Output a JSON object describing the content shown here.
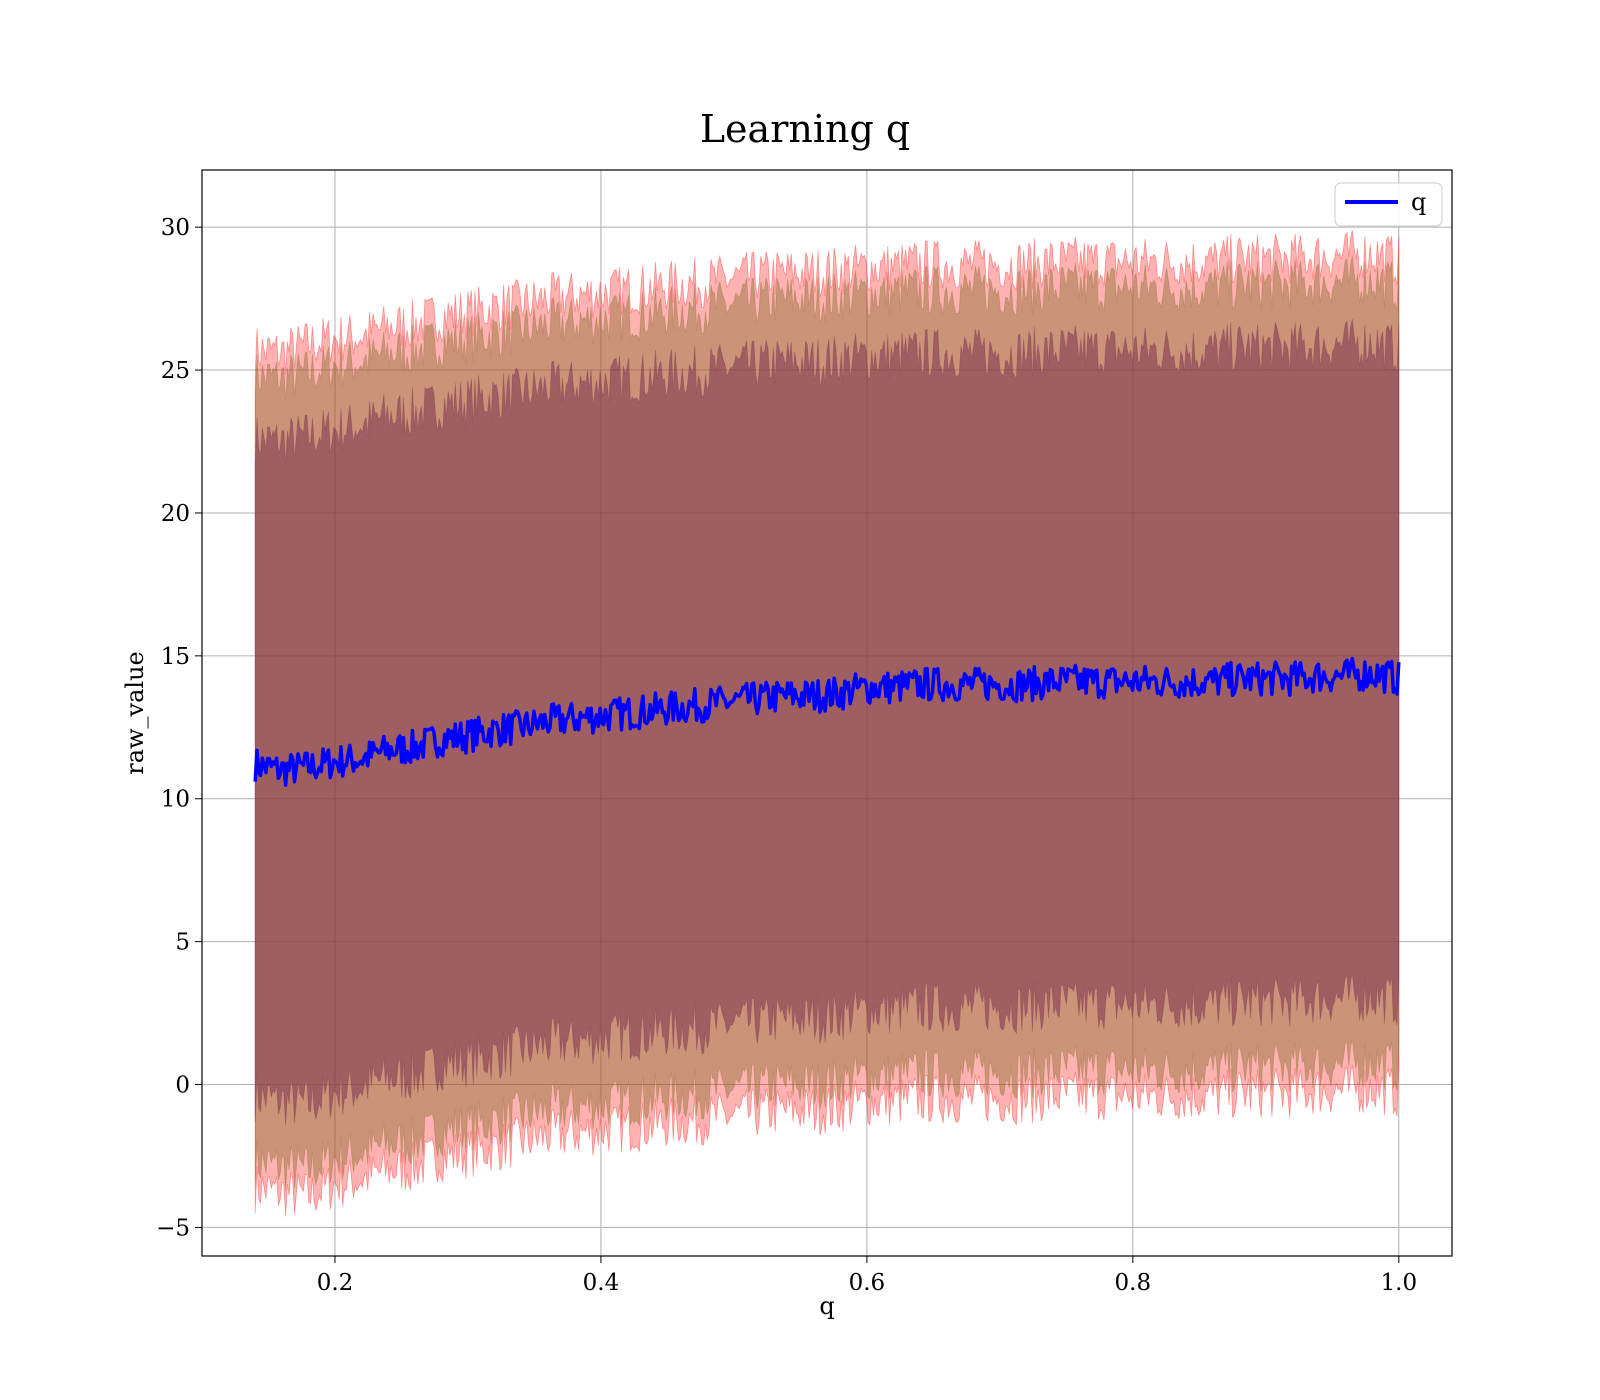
{
  "chart_data": {
    "type": "line",
    "title": "Learning q",
    "xlabel": "q",
    "ylabel": "raw_value",
    "xlim": [
      0.1,
      1.04
    ],
    "ylim": [
      -6,
      32
    ],
    "xticks": [
      0.2,
      0.4,
      0.6,
      0.8,
      1.0
    ],
    "xtick_labels": [
      "0.2",
      "0.4",
      "0.6",
      "0.8",
      "1.0"
    ],
    "yticks": [
      -5,
      0,
      5,
      10,
      15,
      20,
      25,
      30
    ],
    "ytick_labels": [
      "−5",
      "0",
      "5",
      "10",
      "15",
      "20",
      "25",
      "30"
    ],
    "grid": true,
    "legend": {
      "position": "top-right",
      "entries": [
        "q"
      ]
    },
    "colors": {
      "mean_line": "#0000ff",
      "outer_band": "#ff0000",
      "middle_band": "#8b6d30",
      "inner_band": "#7a3350",
      "grid": "#b0b0b0"
    },
    "series": [
      {
        "name": "q",
        "x": [
          0.14,
          0.16,
          0.18,
          0.2,
          0.22,
          0.24,
          0.26,
          0.28,
          0.3,
          0.32,
          0.34,
          0.36,
          0.38,
          0.4,
          0.42,
          0.44,
          0.46,
          0.48,
          0.5,
          0.52,
          0.54,
          0.56,
          0.58,
          0.6,
          0.62,
          0.64,
          0.66,
          0.68,
          0.7,
          0.72,
          0.74,
          0.76,
          0.78,
          0.8,
          0.82,
          0.84,
          0.86,
          0.88,
          0.9,
          0.92,
          0.94,
          0.96,
          0.98,
          1.0
        ],
        "y": [
          11.2,
          11.0,
          11.1,
          11.3,
          11.4,
          11.7,
          11.8,
          12.1,
          12.2,
          12.4,
          12.5,
          12.7,
          12.8,
          12.9,
          13.0,
          13.1,
          13.2,
          13.3,
          13.4,
          13.5,
          13.6,
          13.6,
          13.7,
          13.9,
          13.9,
          14.0,
          14.0,
          14.0,
          14.0,
          14.0,
          14.1,
          14.1,
          14.1,
          14.1,
          14.1,
          14.1,
          14.1,
          14.2,
          14.2,
          14.2,
          14.3,
          14.3,
          14.4,
          14.2
        ]
      }
    ],
    "bands": [
      {
        "x": [
          0.14,
          0.16,
          0.18,
          0.2,
          0.22,
          0.24,
          0.26,
          0.28,
          0.3,
          0.32,
          0.34,
          0.36,
          0.38,
          0.4,
          0.42,
          0.44,
          0.46,
          0.48,
          0.5,
          0.52,
          0.54,
          0.56,
          0.58,
          0.6,
          0.62,
          0.64,
          0.66,
          0.68,
          0.7,
          0.72,
          0.74,
          0.76,
          0.78,
          0.8,
          0.82,
          0.84,
          0.86,
          0.88,
          0.9,
          0.92,
          0.94,
          0.96,
          0.98,
          1.0
        ],
        "lower": [
          -3.6,
          -3.8,
          -3.9,
          -3.5,
          -3.3,
          -3.0,
          -2.9,
          -2.5,
          -2.4,
          -2.2,
          -2.0,
          -1.8,
          -1.7,
          -1.6,
          -1.5,
          -1.4,
          -1.3,
          -1.2,
          -1.1,
          -1.0,
          -0.9,
          -0.9,
          -0.8,
          -0.6,
          -0.6,
          -0.5,
          -0.5,
          -0.5,
          -0.5,
          -0.5,
          -0.4,
          -0.4,
          -0.4,
          -0.4,
          -0.4,
          -0.4,
          -0.4,
          -0.3,
          -0.3,
          -0.3,
          -0.2,
          -0.2,
          -0.1,
          -0.3
        ],
        "upper": [
          25.7,
          25.6,
          25.9,
          26.1,
          26.2,
          26.5,
          26.6,
          26.9,
          27.0,
          27.2,
          27.3,
          27.5,
          27.6,
          27.7,
          27.8,
          27.9,
          28.0,
          28.1,
          28.2,
          28.3,
          28.4,
          28.4,
          28.5,
          28.6,
          28.6,
          28.7,
          28.7,
          28.7,
          28.7,
          28.7,
          28.8,
          28.8,
          28.8,
          28.8,
          28.8,
          28.8,
          28.8,
          28.9,
          28.9,
          28.9,
          29.0,
          29.0,
          29.1,
          28.8
        ]
      },
      {
        "x": [
          0.14,
          0.16,
          0.18,
          0.2,
          0.22,
          0.24,
          0.26,
          0.28,
          0.3,
          0.32,
          0.34,
          0.36,
          0.38,
          0.4,
          0.42,
          0.44,
          0.46,
          0.48,
          0.5,
          0.52,
          0.54,
          0.56,
          0.58,
          0.6,
          0.62,
          0.64,
          0.66,
          0.68,
          0.7,
          0.72,
          0.74,
          0.76,
          0.78,
          0.8,
          0.82,
          0.84,
          0.86,
          0.88,
          0.9,
          0.92,
          0.94,
          0.96,
          0.98,
          1.0
        ],
        "lower": [
          -2.7,
          -2.9,
          -3.0,
          -2.6,
          -2.4,
          -2.1,
          -2.0,
          -1.6,
          -1.5,
          -1.3,
          -1.1,
          -0.9,
          -0.8,
          -0.7,
          -0.6,
          -0.5,
          -0.4,
          -0.3,
          -0.2,
          -0.1,
          0.0,
          0.0,
          0.1,
          0.3,
          0.3,
          0.4,
          0.4,
          0.4,
          0.4,
          0.4,
          0.5,
          0.5,
          0.5,
          0.5,
          0.5,
          0.5,
          0.5,
          0.6,
          0.6,
          0.6,
          0.7,
          0.7,
          0.8,
          0.6
        ],
        "upper": [
          24.8,
          24.7,
          24.9,
          25.2,
          25.3,
          25.6,
          25.7,
          26.0,
          26.1,
          26.3,
          26.4,
          26.6,
          26.7,
          26.8,
          26.9,
          27.0,
          27.1,
          27.2,
          27.3,
          27.4,
          27.5,
          27.5,
          27.6,
          27.7,
          27.7,
          27.8,
          27.8,
          27.8,
          27.8,
          27.8,
          27.9,
          27.9,
          27.9,
          27.9,
          27.9,
          27.9,
          27.9,
          28.0,
          28.0,
          28.0,
          28.1,
          28.1,
          28.2,
          27.9
        ]
      },
      {
        "x": [
          0.14,
          0.16,
          0.18,
          0.2,
          0.22,
          0.24,
          0.26,
          0.28,
          0.3,
          0.32,
          0.34,
          0.36,
          0.38,
          0.4,
          0.42,
          0.44,
          0.46,
          0.48,
          0.5,
          0.52,
          0.54,
          0.56,
          0.58,
          0.6,
          0.62,
          0.64,
          0.66,
          0.68,
          0.7,
          0.72,
          0.74,
          0.76,
          0.78,
          0.8,
          0.82,
          0.84,
          0.86,
          0.88,
          0.9,
          0.92,
          0.94,
          0.96,
          0.98,
          1.0
        ],
        "lower": [
          -0.4,
          -0.6,
          -0.7,
          -0.3,
          -0.1,
          0.2,
          0.3,
          0.7,
          0.8,
          1.0,
          1.2,
          1.4,
          1.5,
          1.6,
          1.7,
          1.8,
          1.9,
          2.0,
          2.1,
          2.2,
          2.3,
          2.3,
          2.4,
          2.6,
          2.6,
          2.7,
          2.7,
          2.7,
          2.7,
          2.7,
          2.8,
          2.8,
          2.8,
          2.8,
          2.8,
          2.8,
          2.8,
          2.9,
          2.9,
          2.9,
          3.0,
          3.0,
          3.1,
          2.9
        ],
        "upper": [
          22.6,
          22.5,
          22.7,
          22.9,
          23.1,
          23.4,
          23.5,
          23.8,
          23.9,
          24.1,
          24.2,
          24.4,
          24.5,
          24.6,
          24.7,
          24.8,
          24.9,
          25.0,
          25.1,
          25.2,
          25.3,
          25.3,
          25.4,
          25.5,
          25.5,
          25.6,
          25.6,
          25.6,
          25.6,
          25.6,
          25.7,
          25.7,
          25.7,
          25.7,
          25.7,
          25.7,
          25.7,
          25.8,
          25.8,
          25.8,
          25.9,
          25.9,
          26.0,
          25.7
        ]
      }
    ]
  }
}
